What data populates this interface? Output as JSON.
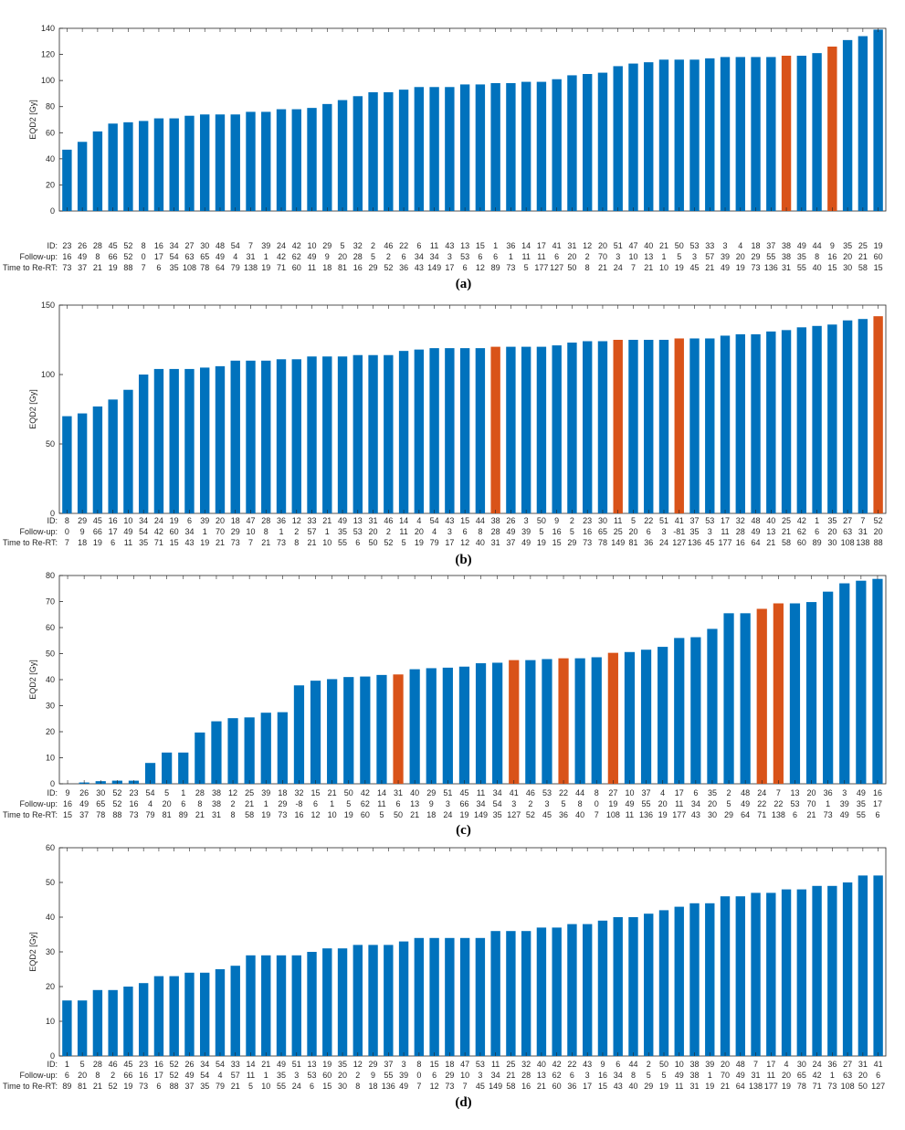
{
  "colors": {
    "bar": "#0072BD",
    "highlight": "#D95319",
    "axis": "#262626"
  },
  "chart_data": [
    {
      "type": "bar",
      "panel_label": "(a)",
      "ylabel": "EQD2 [Gy]",
      "ylim": [
        0,
        140
      ],
      "yticks": [
        0,
        20,
        40,
        60,
        80,
        100,
        120,
        140
      ],
      "row_labels": [
        "ID:",
        "Follow-up:",
        "Time to Re-RT:"
      ],
      "ids": [
        "23",
        "26",
        "28",
        "45",
        "52",
        "8",
        "16",
        "34",
        "27",
        "30",
        "48",
        "54",
        "7",
        "39",
        "24",
        "42",
        "10",
        "29",
        "5",
        "32",
        "2",
        "46",
        "22",
        "6",
        "11",
        "43",
        "13",
        "15",
        "1",
        "36",
        "14",
        "17",
        "41",
        "31",
        "12",
        "20",
        "51",
        "47",
        "40",
        "21",
        "50",
        "53",
        "33",
        "3",
        "4",
        "18",
        "37",
        "38",
        "49",
        "44",
        "9",
        "35",
        "25",
        "19"
      ],
      "follow_up": [
        "16",
        "49",
        "8",
        "66",
        "52",
        "0",
        "17",
        "54",
        "63",
        "65",
        "49",
        "4",
        "31",
        "1",
        "42",
        "62",
        "49",
        "9",
        "20",
        "28",
        "5",
        "2",
        "6",
        "34",
        "34",
        "3",
        "53",
        "6",
        "6",
        "1",
        "11",
        "11",
        "6",
        "20",
        "2",
        "70",
        "3",
        "10",
        "13",
        "1",
        "5",
        "3",
        "57",
        "39",
        "20",
        "29",
        "55",
        "38",
        "35",
        "8",
        "16",
        "20",
        "21",
        "60"
      ],
      "time_to_rert": [
        "73",
        "37",
        "21",
        "19",
        "88",
        "7",
        "6",
        "35",
        "108",
        "78",
        "64",
        "79",
        "138",
        "19",
        "71",
        "60",
        "11",
        "18",
        "81",
        "16",
        "29",
        "52",
        "36",
        "43",
        "149",
        "17",
        "6",
        "12",
        "89",
        "73",
        "5",
        "177",
        "127",
        "50",
        "8",
        "21",
        "24",
        "7",
        "21",
        "10",
        "19",
        "45",
        "21",
        "49",
        "19",
        "73",
        "136",
        "31",
        "55",
        "40",
        "15",
        "30",
        "58",
        "15"
      ],
      "values": [
        47,
        53,
        61,
        67,
        68,
        69,
        71,
        71,
        73,
        74,
        74,
        74,
        76,
        76,
        78,
        78,
        79,
        82,
        85,
        88,
        91,
        91,
        93,
        95,
        95,
        95,
        97,
        97,
        98,
        98,
        99,
        99,
        101,
        104,
        105,
        106,
        111,
        113,
        114,
        116,
        116,
        116,
        117,
        118,
        118,
        118,
        118,
        119,
        119,
        121,
        126,
        131,
        134,
        139
      ],
      "highlight": [
        47,
        50
      ]
    },
    {
      "type": "bar",
      "panel_label": "(b)",
      "ylabel": "EQD2 [Gy]",
      "ylim": [
        0,
        150
      ],
      "yticks": [
        0,
        50,
        100,
        150
      ],
      "row_labels": [
        "ID:",
        "Follow-up:",
        "Time to Re-RT:"
      ],
      "ids": [
        "8",
        "29",
        "45",
        "16",
        "10",
        "34",
        "24",
        "19",
        "6",
        "39",
        "20",
        "18",
        "47",
        "28",
        "36",
        "12",
        "33",
        "21",
        "49",
        "13",
        "31",
        "46",
        "14",
        "4",
        "54",
        "43",
        "15",
        "44",
        "38",
        "26",
        "3",
        "50",
        "9",
        "2",
        "23",
        "30",
        "11",
        "5",
        "22",
        "51",
        "41",
        "37",
        "53",
        "17",
        "32",
        "48",
        "40",
        "25",
        "42",
        "1",
        "35",
        "27",
        "7",
        "52"
      ],
      "follow_up": [
        "0",
        "9",
        "66",
        "17",
        "49",
        "54",
        "42",
        "60",
        "34",
        "1",
        "70",
        "29",
        "10",
        "8",
        "1",
        "2",
        "57",
        "1",
        "35",
        "53",
        "20",
        "2",
        "11",
        "20",
        "4",
        "3",
        "6",
        "8",
        "28",
        "49",
        "39",
        "5",
        "16",
        "5",
        "16",
        "65",
        "25",
        "20",
        "6",
        "3",
        "-81",
        "35",
        "3",
        "11",
        "28",
        "49",
        "13",
        "21",
        "62",
        "6",
        "20",
        "63",
        "31",
        "20"
      ],
      "time_to_rert": [
        "7",
        "18",
        "19",
        "6",
        "11",
        "35",
        "71",
        "15",
        "43",
        "19",
        "21",
        "73",
        "7",
        "21",
        "73",
        "8",
        "21",
        "10",
        "55",
        "6",
        "50",
        "52",
        "5",
        "19",
        "79",
        "17",
        "12",
        "40",
        "31",
        "37",
        "49",
        "19",
        "15",
        "29",
        "73",
        "78",
        "149",
        "81",
        "36",
        "24",
        "127",
        "136",
        "45",
        "177",
        "16",
        "64",
        "21",
        "58",
        "60",
        "89",
        "30",
        "108",
        "138",
        "88"
      ],
      "values": [
        70,
        72,
        77,
        82,
        89,
        100,
        104,
        104,
        104,
        105,
        106,
        110,
        110,
        110,
        111,
        111,
        113,
        113,
        113,
        114,
        114,
        114,
        117,
        118,
        119,
        119,
        119,
        119,
        120,
        120,
        120,
        120,
        121,
        123,
        124,
        124,
        125,
        125,
        125,
        125,
        126,
        126,
        126,
        128,
        129,
        129,
        131,
        132,
        134,
        135,
        136,
        139,
        140,
        142
      ],
      "highlight": [
        28,
        36,
        40,
        53
      ]
    },
    {
      "type": "bar",
      "panel_label": "(c)",
      "ylabel": "EQD2 [Gy]",
      "ylim": [
        0,
        80
      ],
      "yticks": [
        0,
        10,
        20,
        30,
        40,
        50,
        60,
        70,
        80
      ],
      "row_labels": [
        "ID:",
        "Follow-up:",
        "Time to Re-RT:"
      ],
      "ids": [
        "9",
        "26",
        "30",
        "52",
        "23",
        "54",
        "5",
        "1",
        "28",
        "38",
        "12",
        "25",
        "39",
        "18",
        "32",
        "15",
        "21",
        "50",
        "42",
        "14",
        "31",
        "40",
        "29",
        "51",
        "45",
        "11",
        "34",
        "41",
        "46",
        "53",
        "22",
        "44",
        "8",
        "27",
        "10",
        "37",
        "4",
        "17",
        "6",
        "35",
        "2",
        "48",
        "24",
        "7",
        "13",
        "20",
        "36",
        "3",
        "49",
        "16"
      ],
      "follow_up": [
        "16",
        "49",
        "65",
        "52",
        "16",
        "4",
        "20",
        "6",
        "8",
        "38",
        "2",
        "21",
        "1",
        "29",
        "-8",
        "6",
        "1",
        "5",
        "62",
        "11",
        "6",
        "13",
        "9",
        "3",
        "66",
        "34",
        "54",
        "3",
        "2",
        "3",
        "5",
        "8",
        "0",
        "19",
        "49",
        "55",
        "20",
        "11",
        "34",
        "20",
        "5",
        "49",
        "22",
        "22",
        "53",
        "70",
        "1",
        "39",
        "35",
        "17"
      ],
      "time_to_rert": [
        "15",
        "37",
        "78",
        "88",
        "73",
        "79",
        "81",
        "89",
        "21",
        "31",
        "8",
        "58",
        "19",
        "73",
        "16",
        "12",
        "10",
        "19",
        "60",
        "5",
        "50",
        "21",
        "18",
        "24",
        "19",
        "149",
        "35",
        "127",
        "52",
        "45",
        "36",
        "40",
        "7",
        "108",
        "11",
        "136",
        "19",
        "177",
        "43",
        "30",
        "29",
        "64",
        "71",
        "138",
        "6",
        "21",
        "73",
        "49",
        "55",
        "6"
      ],
      "values": [
        0,
        0.5,
        1,
        1.2,
        1.2,
        8,
        12,
        12,
        19.7,
        24,
        25.2,
        25.5,
        27.3,
        27.5,
        37.8,
        39.6,
        40.2,
        41,
        41.2,
        41.8,
        42,
        44,
        44.4,
        44.6,
        45,
        46.3,
        46.5,
        47.5,
        47.5,
        47.9,
        48.2,
        48.2,
        48.6,
        50.3,
        50.6,
        51.5,
        52.6,
        56,
        56.3,
        59.5,
        65.5,
        65.5,
        67.2,
        69.3,
        69.3,
        69.8,
        73.8,
        77,
        78,
        78.7
      ],
      "highlight": [
        20,
        27,
        30,
        33,
        42,
        43
      ]
    },
    {
      "type": "bar",
      "panel_label": "(d)",
      "ylabel": "EQD2 [Gy]",
      "ylim": [
        0,
        60
      ],
      "yticks": [
        0,
        10,
        20,
        30,
        40,
        50,
        60
      ],
      "row_labels": [
        "ID:",
        "Follow-up:",
        "Time to Re-RT:"
      ],
      "ids": [
        "1",
        "5",
        "28",
        "46",
        "45",
        "23",
        "16",
        "52",
        "26",
        "34",
        "54",
        "33",
        "14",
        "21",
        "49",
        "51",
        "13",
        "19",
        "35",
        "12",
        "29",
        "37",
        "3",
        "8",
        "15",
        "18",
        "47",
        "53",
        "11",
        "25",
        "32",
        "40",
        "42",
        "22",
        "43",
        "9",
        "6",
        "44",
        "2",
        "50",
        "10",
        "38",
        "39",
        "20",
        "48",
        "7",
        "17",
        "4",
        "30",
        "24",
        "36",
        "27",
        "31",
        "41"
      ],
      "follow_up": [
        "6",
        "20",
        "8",
        "2",
        "66",
        "16",
        "17",
        "52",
        "49",
        "54",
        "4",
        "57",
        "11",
        "1",
        "35",
        "3",
        "53",
        "60",
        "20",
        "2",
        "9",
        "55",
        "39",
        "0",
        "6",
        "29",
        "10",
        "3",
        "34",
        "21",
        "28",
        "13",
        "62",
        "6",
        "3",
        "16",
        "34",
        "8",
        "5",
        "5",
        "49",
        "38",
        "1",
        "70",
        "49",
        "31",
        "11",
        "20",
        "65",
        "42",
        "1",
        "63",
        "20",
        "6"
      ],
      "time_to_rert": [
        "89",
        "81",
        "21",
        "52",
        "19",
        "73",
        "6",
        "88",
        "37",
        "35",
        "79",
        "21",
        "5",
        "10",
        "55",
        "24",
        "6",
        "15",
        "30",
        "8",
        "18",
        "136",
        "49",
        "7",
        "12",
        "73",
        "7",
        "45",
        "149",
        "58",
        "16",
        "21",
        "60",
        "36",
        "17",
        "15",
        "43",
        "40",
        "29",
        "19",
        "11",
        "31",
        "19",
        "21",
        "64",
        "138",
        "177",
        "19",
        "78",
        "71",
        "73",
        "108",
        "50",
        "127"
      ],
      "values": [
        16,
        16,
        19,
        19,
        20,
        21,
        23,
        23,
        24,
        24,
        25,
        26,
        29,
        29,
        29,
        29,
        30,
        31,
        31,
        32,
        32,
        32,
        33,
        34,
        34,
        34,
        34,
        34,
        36,
        36,
        36,
        37,
        37,
        38,
        38,
        39,
        40,
        40,
        41,
        42,
        43,
        44,
        44,
        46,
        46,
        47,
        47,
        48,
        48,
        49,
        49,
        50,
        52,
        52
      ],
      "highlight": []
    }
  ]
}
